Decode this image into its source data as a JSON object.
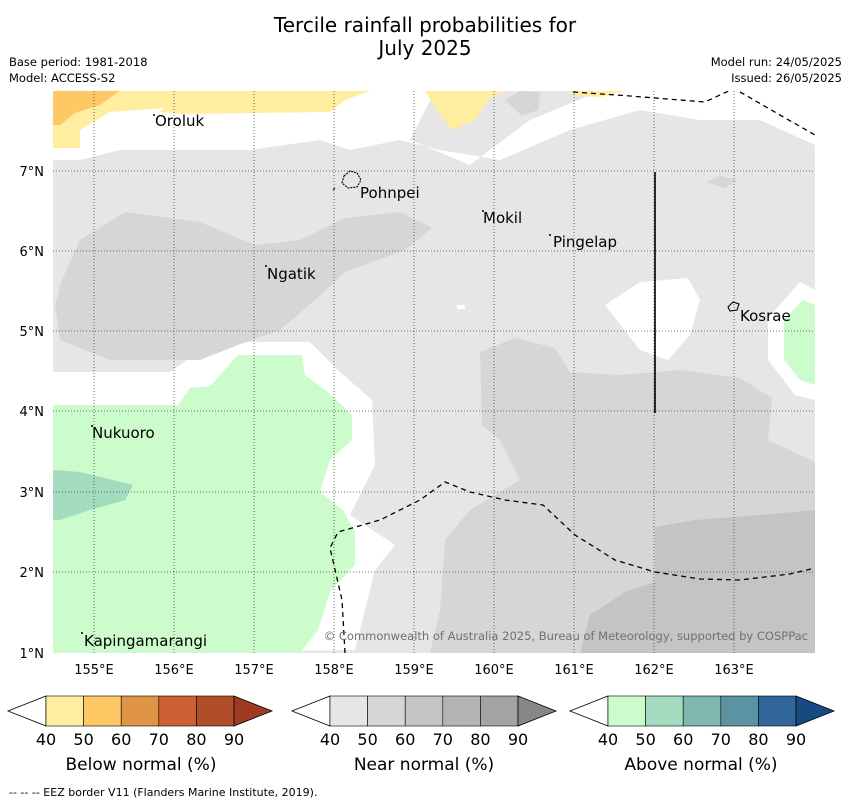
{
  "title_line1": "Tercile rainfall probabilities for",
  "title_line2": "July 2025",
  "meta": {
    "base_period": "Base period: 1981-2018",
    "model": "Model: ACCESS-S2",
    "model_run": "Model run: 24/05/2025",
    "issued": "Issued: 26/05/2025"
  },
  "map": {
    "lon_labels": [
      "155°E",
      "156°E",
      "157°E",
      "158°E",
      "159°E",
      "160°E",
      "161°E",
      "162°E",
      "163°E"
    ],
    "lat_labels": [
      "7°N",
      "6°N",
      "5°N",
      "4°N",
      "3°N",
      "2°N",
      "1°N"
    ],
    "places": [
      {
        "name": "Oroluk"
      },
      {
        "name": "Pohnpei"
      },
      {
        "name": "Mokil"
      },
      {
        "name": "Pingelap"
      },
      {
        "name": "Ngatik"
      },
      {
        "name": "Kosrae"
      },
      {
        "name": "Nukuoro"
      },
      {
        "name": "Kapingamarangi"
      }
    ],
    "copyright": "© Commonwealth of Australia 2025, Bureau of Meteorology, supported by COSPPac"
  },
  "colorbars": [
    {
      "title": "Below normal (%)",
      "ticks": [
        "40",
        "50",
        "60",
        "70",
        "80",
        "90"
      ],
      "colors": [
        "#ffeda0",
        "#fec965",
        "#e09445",
        "#cc6233",
        "#b04d2a",
        "#9e3b22"
      ]
    },
    {
      "title": "Near normal (%)",
      "ticks": [
        "40",
        "50",
        "60",
        "70",
        "80",
        "90"
      ],
      "colors": [
        "#e6e6e6",
        "#d6d6d6",
        "#c4c4c4",
        "#b3b3b3",
        "#a3a3a3",
        "#878787"
      ]
    },
    {
      "title": "Above normal (%)",
      "ticks": [
        "40",
        "50",
        "60",
        "70",
        "80",
        "90"
      ],
      "colors": [
        "#ccfccc",
        "#a3dbbf",
        "#80b8ad",
        "#5b93a3",
        "#30669a",
        "#164a82"
      ]
    }
  ],
  "footnote": "--  --  -- EEZ border V11 (Flanders Marine Institute, 2019)."
}
